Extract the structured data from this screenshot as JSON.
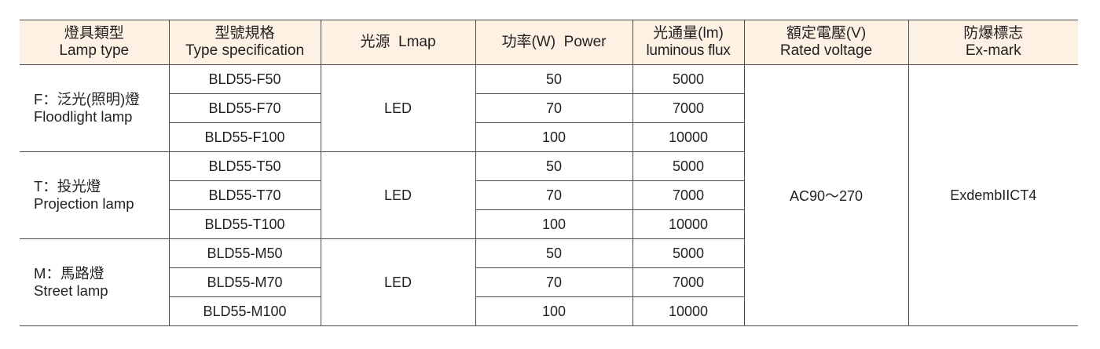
{
  "headers": [
    {
      "zh": "燈具類型",
      "en": "Lamp type"
    },
    {
      "zh": "型號規格",
      "en": "Type specification"
    },
    {
      "zh": "光源",
      "en": "Lmap"
    },
    {
      "zh": "功率(W)",
      "en": "Power"
    },
    {
      "zh": "光通量(lm)",
      "en": "luminous flux"
    },
    {
      "zh": "額定電壓(V)",
      "en": "Rated voltage"
    },
    {
      "zh": "防爆標志",
      "en": "Ex-mark"
    }
  ],
  "groups": [
    {
      "zh": "F：泛光(照明)燈",
      "en": "Floodlight lamp",
      "source": "LED",
      "rows": [
        {
          "model": "BLD55-F50",
          "power": "50",
          "flux": "5000"
        },
        {
          "model": "BLD55-F70",
          "power": "70",
          "flux": "7000"
        },
        {
          "model": "BLD55-F100",
          "power": "100",
          "flux": "10000"
        }
      ]
    },
    {
      "zh": "T：投光燈",
      "en": "Projection lamp",
      "source": "LED",
      "rows": [
        {
          "model": "BLD55-T50",
          "power": "50",
          "flux": "5000"
        },
        {
          "model": "BLD55-T70",
          "power": "70",
          "flux": "7000"
        },
        {
          "model": "BLD55-T100",
          "power": "100",
          "flux": "10000"
        }
      ]
    },
    {
      "zh": "M：馬路燈",
      "en": "Street lamp",
      "source": "LED",
      "rows": [
        {
          "model": "BLD55-M50",
          "power": "50",
          "flux": "5000"
        },
        {
          "model": "BLD55-M70",
          "power": "70",
          "flux": "7000"
        },
        {
          "model": "BLD55-M100",
          "power": "100",
          "flux": "10000"
        }
      ]
    }
  ],
  "rated_voltage": "AC90～270",
  "ex_mark": "ExdembIICT4"
}
